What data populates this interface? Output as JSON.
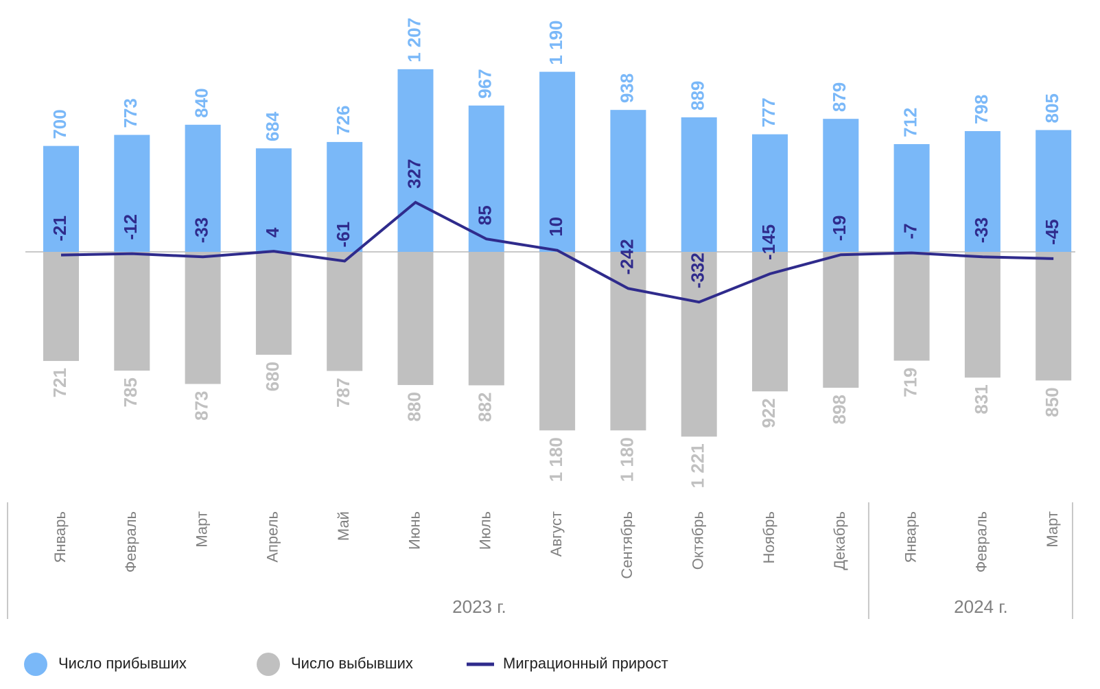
{
  "chart_data": {
    "type": "bar",
    "categories": [
      "Январь",
      "Февраль",
      "Март",
      "Апрель",
      "Май",
      "Июнь",
      "Июль",
      "Август",
      "Сентябрь",
      "Октябрь",
      "Ноябрь",
      "Декабрь",
      "Январь",
      "Февраль",
      "Март"
    ],
    "groups": [
      {
        "name": "2023 г.",
        "size": 12
      },
      {
        "name": "2024 г.",
        "size": 3
      }
    ],
    "series": [
      {
        "name": "Число прибывших",
        "type": "bar",
        "direction": "up",
        "color": "#7ab8f8",
        "values": [
          700,
          773,
          840,
          684,
          726,
          1207,
          967,
          1190,
          938,
          889,
          777,
          879,
          712,
          798,
          805
        ],
        "value_labels": [
          "700",
          "773",
          "840",
          "684",
          "726",
          "1 207",
          "967",
          "1 190",
          "938",
          "889",
          "777",
          "879",
          "712",
          "798",
          "805"
        ]
      },
      {
        "name": "Число выбывших",
        "type": "bar",
        "direction": "down",
        "color": "#c0c0c0",
        "values": [
          721,
          785,
          873,
          680,
          787,
          880,
          882,
          1180,
          1180,
          1221,
          922,
          898,
          719,
          831,
          850
        ],
        "value_labels": [
          "721",
          "785",
          "873",
          "680",
          "787",
          "880",
          "882",
          "1 180",
          "1 180",
          "1 221",
          "922",
          "898",
          "719",
          "831",
          "850"
        ]
      },
      {
        "name": "Миграционный прирост",
        "type": "line",
        "color": "#2f2b8c",
        "values": [
          -21,
          -12,
          -33,
          4,
          -61,
          327,
          85,
          10,
          -242,
          -332,
          -145,
          -19,
          -7,
          -33,
          -45
        ]
      }
    ]
  }
}
